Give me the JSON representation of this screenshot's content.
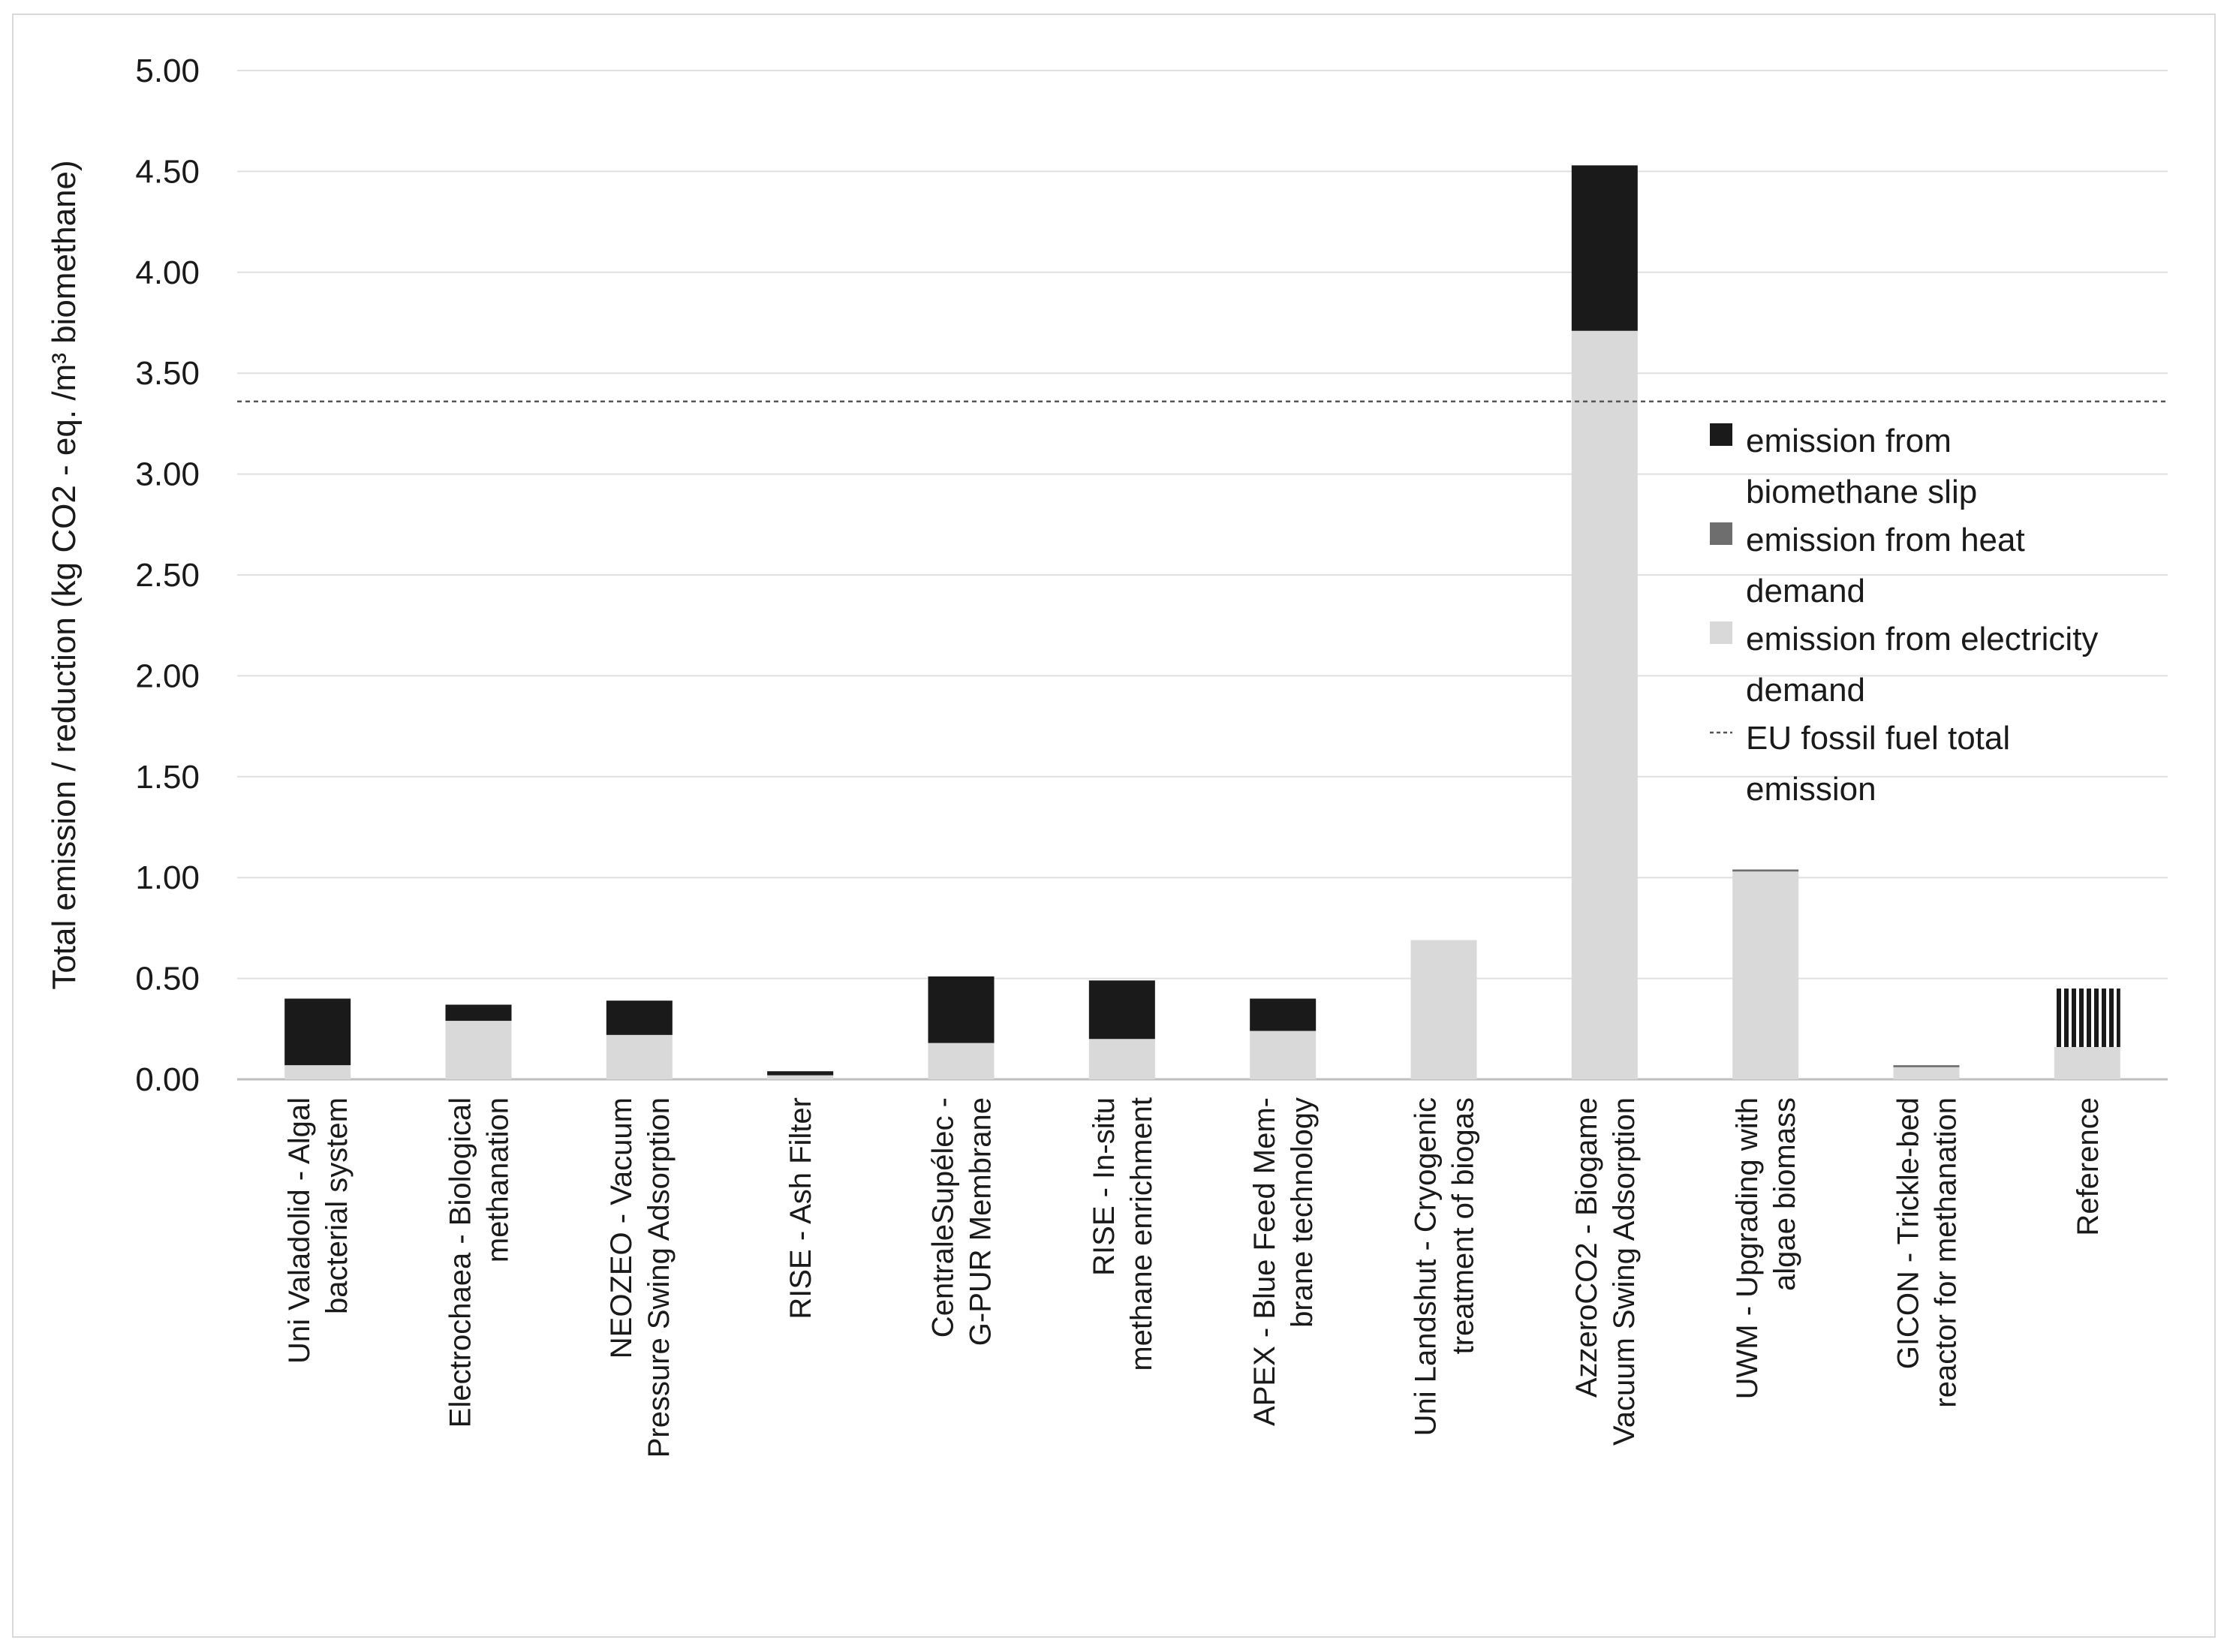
{
  "chart_data": {
    "type": "bar",
    "stacked": true,
    "title": "",
    "xlabel": "",
    "ylabel": "Total emission / reduction (kg CO2 - eq. /m³ biomethane)",
    "ylim": [
      0,
      5
    ],
    "yticks": [
      0,
      0.5,
      1,
      1.5,
      2,
      2.5,
      3,
      3.5,
      4,
      4.5,
      5
    ],
    "ytick_labels": [
      "0.00",
      "0.50",
      "1.00",
      "1.50",
      "2.00",
      "2.50",
      "3.00",
      "3.50",
      "4.00",
      "4.50",
      "5.00"
    ],
    "grid": true,
    "legend_position": "right",
    "categories": [
      [
        "Uni Valadolid  -  Algal",
        "bacterial system"
      ],
      [
        "Electrochaea  -  Biological",
        "methanation"
      ],
      [
        "NEOZEO  -  Vacuum",
        "Pressure Swing Adsorption"
      ],
      [
        "RISE  -  Ash Filter"
      ],
      [
        "CentraleSupélec  -",
        "G-PUR Membrane"
      ],
      [
        "RISE  -  In-situ",
        "methane enrichment"
      ],
      [
        "APEX  -  Blue Feed Mem-",
        "brane technology"
      ],
      [
        "Uni Landshut  -  Cryogenic",
        "treatment of biogas"
      ],
      [
        "AzzeroCO2  -  Biogame",
        "Vacuum Swing Adsorption"
      ],
      [
        "UWM  -  Upgrading with",
        "algae biomass"
      ],
      [
        "GICON  -  Trickle-bed",
        "reactor for methanation"
      ],
      [
        "Reference"
      ]
    ],
    "series": [
      {
        "name": "emission from electricity demand",
        "color": "#d9d9d9",
        "values": [
          0.07,
          0.29,
          0.22,
          0.02,
          0.18,
          0.2,
          0.24,
          0.69,
          3.71,
          1.03,
          0.06,
          0.16
        ]
      },
      {
        "name": "emission from heat demand",
        "color": "#6e6e6e",
        "values": [
          0,
          0,
          0,
          0,
          0,
          0,
          0,
          0,
          0,
          0.01,
          0.01,
          0
        ]
      },
      {
        "name": "emission from biomethane slip",
        "color": "#1a1a1a",
        "values": [
          0.33,
          0.08,
          0.17,
          0.02,
          0.33,
          0.29,
          0.16,
          0,
          0.82,
          0,
          0,
          0.29
        ]
      }
    ],
    "reference_pattern_category": "Reference",
    "reference_line": {
      "name": "EU fossil fuel total emission",
      "value": 3.36,
      "style": "dashed"
    },
    "legend": [
      {
        "lines": [
          "emission from",
          "biomethane slip"
        ],
        "color": "#1a1a1a",
        "marker": "square"
      },
      {
        "lines": [
          "emission from heat",
          "demand"
        ],
        "color": "#6e6e6e",
        "marker": "square"
      },
      {
        "lines": [
          "emission from electricity",
          "demand"
        ],
        "color": "#d9d9d9",
        "marker": "square"
      },
      {
        "lines": [
          "EU fossil fuel total",
          "emission"
        ],
        "color": "#555555",
        "marker": "dash"
      }
    ]
  }
}
